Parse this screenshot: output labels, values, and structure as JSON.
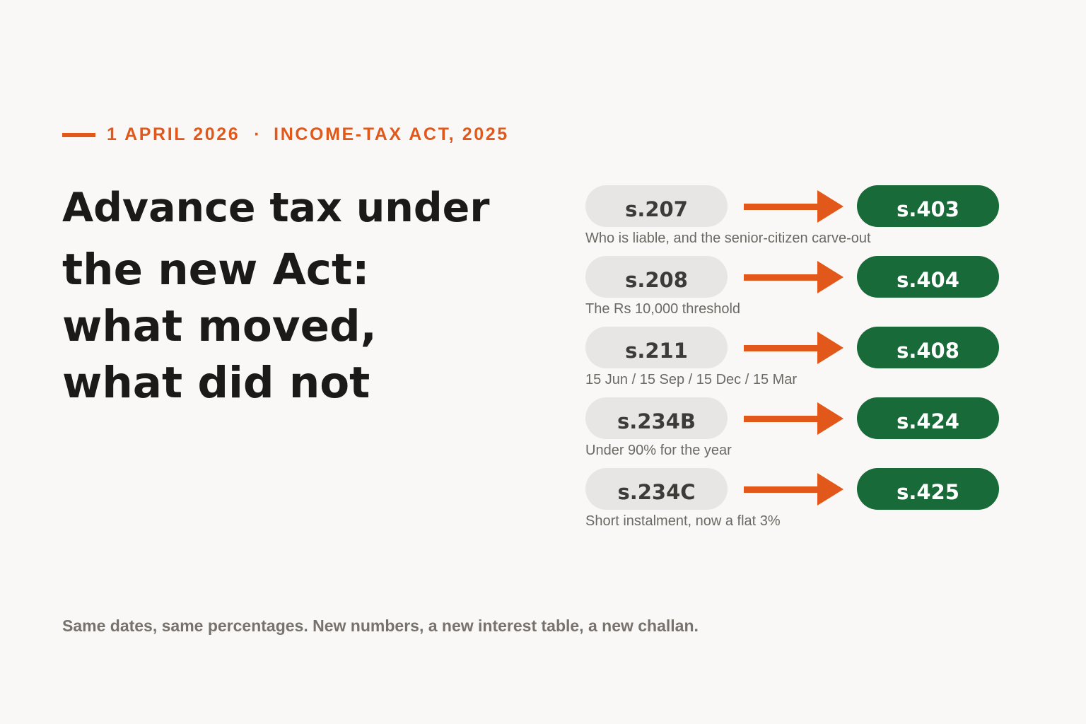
{
  "header": {
    "date": "1 APRIL 2026",
    "separator": "·",
    "act": "INCOME-TAX ACT, 2025"
  },
  "headline": {
    "line1": "Advance tax under",
    "line2": "the new Act:",
    "line3": "what moved,",
    "line4": "what did not"
  },
  "mappings": [
    {
      "old": "s.207",
      "new": "s.403",
      "description": "Who is liable, and the senior-citizen carve-out"
    },
    {
      "old": "s.208",
      "new": "s.404",
      "description": "The Rs 10,000 threshold"
    },
    {
      "old": "s.211",
      "new": "s.408",
      "description": "15 Jun / 15 Sep / 15 Dec / 15 Mar"
    },
    {
      "old": "s.234B",
      "new": "s.424",
      "description": "Under 90% for the year"
    },
    {
      "old": "s.234C",
      "new": "s.425",
      "description": "Short instalment, now a flat 3%"
    }
  ],
  "footnote": "Same dates, same percentages. New numbers, a new interest table, a new challan.",
  "colors": {
    "accent": "#e2581a",
    "new_section": "#186a38",
    "old_section": "#e7e6e4",
    "background": "#f9f8f6"
  },
  "icons": {
    "arrow": "arrow-right-icon"
  }
}
